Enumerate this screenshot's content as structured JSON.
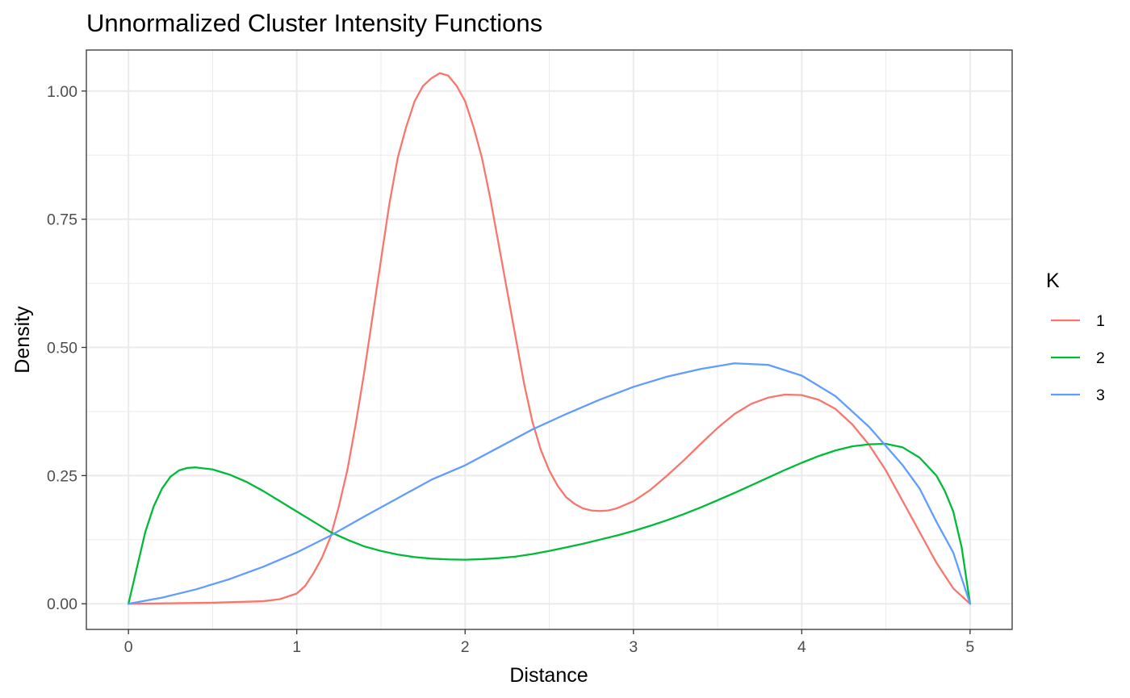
{
  "chart_data": {
    "type": "line",
    "title": "Unnormalized Cluster Intensity Functions",
    "xlabel": "Distance",
    "ylabel": "Density",
    "xlim": [
      -0.25,
      5.25
    ],
    "ylim": [
      -0.05,
      1.08
    ],
    "x_ticks": [
      0,
      1,
      2,
      3,
      4,
      5
    ],
    "y_ticks": [
      0.0,
      0.25,
      0.5,
      0.75,
      1.0
    ],
    "x_tick_labels": [
      "0",
      "1",
      "2",
      "3",
      "4",
      "5"
    ],
    "y_tick_labels": [
      "0.00",
      "0.25",
      "0.50",
      "0.75",
      "1.00"
    ],
    "grid": true,
    "legend": {
      "title": "K",
      "placement": "right"
    },
    "series": [
      {
        "name": "1",
        "color": "#F8766D",
        "points": [
          [
            0,
            0
          ],
          [
            0.5,
            0.002
          ],
          [
            0.8,
            0.005
          ],
          [
            0.9,
            0.009
          ],
          [
            1.0,
            0.02
          ],
          [
            1.05,
            0.035
          ],
          [
            1.1,
            0.06
          ],
          [
            1.15,
            0.09
          ],
          [
            1.2,
            0.13
          ],
          [
            1.25,
            0.19
          ],
          [
            1.3,
            0.26
          ],
          [
            1.35,
            0.35
          ],
          [
            1.4,
            0.45
          ],
          [
            1.45,
            0.56
          ],
          [
            1.5,
            0.67
          ],
          [
            1.55,
            0.78
          ],
          [
            1.6,
            0.87
          ],
          [
            1.65,
            0.93
          ],
          [
            1.7,
            0.98
          ],
          [
            1.75,
            1.01
          ],
          [
            1.8,
            1.025
          ],
          [
            1.85,
            1.035
          ],
          [
            1.9,
            1.03
          ],
          [
            1.95,
            1.01
          ],
          [
            2.0,
            0.98
          ],
          [
            2.05,
            0.93
          ],
          [
            2.1,
            0.87
          ],
          [
            2.15,
            0.79
          ],
          [
            2.2,
            0.7
          ],
          [
            2.25,
            0.61
          ],
          [
            2.3,
            0.52
          ],
          [
            2.35,
            0.43
          ],
          [
            2.4,
            0.355
          ],
          [
            2.45,
            0.3
          ],
          [
            2.5,
            0.26
          ],
          [
            2.55,
            0.23
          ],
          [
            2.6,
            0.208
          ],
          [
            2.65,
            0.195
          ],
          [
            2.7,
            0.186
          ],
          [
            2.75,
            0.182
          ],
          [
            2.8,
            0.181
          ],
          [
            2.85,
            0.182
          ],
          [
            2.9,
            0.186
          ],
          [
            3.0,
            0.2
          ],
          [
            3.1,
            0.222
          ],
          [
            3.2,
            0.25
          ],
          [
            3.3,
            0.28
          ],
          [
            3.4,
            0.312
          ],
          [
            3.5,
            0.343
          ],
          [
            3.6,
            0.37
          ],
          [
            3.7,
            0.39
          ],
          [
            3.8,
            0.402
          ],
          [
            3.9,
            0.408
          ],
          [
            4.0,
            0.407
          ],
          [
            4.1,
            0.398
          ],
          [
            4.2,
            0.38
          ],
          [
            4.3,
            0.35
          ],
          [
            4.4,
            0.31
          ],
          [
            4.5,
            0.26
          ],
          [
            4.6,
            0.2
          ],
          [
            4.7,
            0.14
          ],
          [
            4.8,
            0.08
          ],
          [
            4.9,
            0.03
          ],
          [
            5.0,
            0
          ]
        ]
      },
      {
        "name": "2",
        "color": "#00BA38",
        "points": [
          [
            0,
            0
          ],
          [
            0.05,
            0.07
          ],
          [
            0.1,
            0.14
          ],
          [
            0.15,
            0.19
          ],
          [
            0.2,
            0.225
          ],
          [
            0.25,
            0.248
          ],
          [
            0.3,
            0.26
          ],
          [
            0.35,
            0.265
          ],
          [
            0.4,
            0.266
          ],
          [
            0.5,
            0.262
          ],
          [
            0.6,
            0.252
          ],
          [
            0.7,
            0.238
          ],
          [
            0.8,
            0.22
          ],
          [
            0.9,
            0.2
          ],
          [
            1.0,
            0.18
          ],
          [
            1.1,
            0.16
          ],
          [
            1.2,
            0.14
          ],
          [
            1.3,
            0.125
          ],
          [
            1.4,
            0.112
          ],
          [
            1.5,
            0.103
          ],
          [
            1.6,
            0.096
          ],
          [
            1.7,
            0.091
          ],
          [
            1.8,
            0.088
          ],
          [
            1.9,
            0.0865
          ],
          [
            2.0,
            0.086
          ],
          [
            2.1,
            0.087
          ],
          [
            2.2,
            0.089
          ],
          [
            2.3,
            0.092
          ],
          [
            2.4,
            0.097
          ],
          [
            2.5,
            0.103
          ],
          [
            2.6,
            0.11
          ],
          [
            2.7,
            0.117
          ],
          [
            2.8,
            0.125
          ],
          [
            2.9,
            0.133
          ],
          [
            3.0,
            0.142
          ],
          [
            3.1,
            0.152
          ],
          [
            3.2,
            0.163
          ],
          [
            3.3,
            0.175
          ],
          [
            3.4,
            0.188
          ],
          [
            3.5,
            0.202
          ],
          [
            3.6,
            0.216
          ],
          [
            3.7,
            0.231
          ],
          [
            3.8,
            0.246
          ],
          [
            3.9,
            0.261
          ],
          [
            4.0,
            0.275
          ],
          [
            4.1,
            0.288
          ],
          [
            4.2,
            0.299
          ],
          [
            4.3,
            0.307
          ],
          [
            4.4,
            0.311
          ],
          [
            4.5,
            0.312
          ],
          [
            4.6,
            0.305
          ],
          [
            4.7,
            0.285
          ],
          [
            4.8,
            0.25
          ],
          [
            4.85,
            0.22
          ],
          [
            4.9,
            0.18
          ],
          [
            4.95,
            0.11
          ],
          [
            5.0,
            0
          ]
        ]
      },
      {
        "name": "3",
        "color": "#619CFF",
        "points": [
          [
            0,
            0
          ],
          [
            0.2,
            0.012
          ],
          [
            0.4,
            0.028
          ],
          [
            0.6,
            0.048
          ],
          [
            0.8,
            0.072
          ],
          [
            1.0,
            0.1
          ],
          [
            1.2,
            0.133
          ],
          [
            1.4,
            0.17
          ],
          [
            1.6,
            0.206
          ],
          [
            1.8,
            0.242
          ],
          [
            2.0,
            0.27
          ],
          [
            2.2,
            0.305
          ],
          [
            2.4,
            0.34
          ],
          [
            2.6,
            0.37
          ],
          [
            2.8,
            0.398
          ],
          [
            3.0,
            0.423
          ],
          [
            3.2,
            0.443
          ],
          [
            3.4,
            0.458
          ],
          [
            3.6,
            0.469
          ],
          [
            3.8,
            0.466
          ],
          [
            4.0,
            0.445
          ],
          [
            4.2,
            0.405
          ],
          [
            4.4,
            0.345
          ],
          [
            4.6,
            0.27
          ],
          [
            4.7,
            0.225
          ],
          [
            4.8,
            0.16
          ],
          [
            4.9,
            0.1
          ],
          [
            5.0,
            0
          ]
        ]
      }
    ]
  }
}
